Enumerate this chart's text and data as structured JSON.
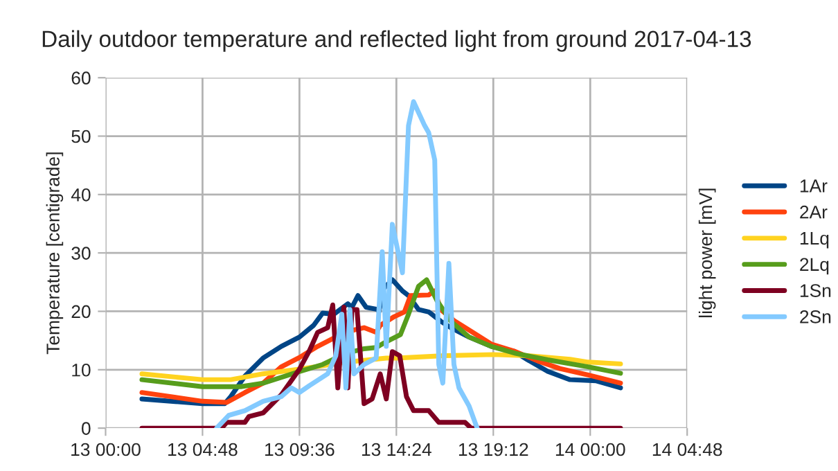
{
  "chart_data": {
    "type": "line",
    "title": "Daily outdoor temperature and reflected light from ground 2017-04-13",
    "ylabel": "Temperature [centigrade]",
    "y2label": "light power [mV]",
    "xlim": [
      "2017-04-13T00:00",
      "2017-04-14T04:48"
    ],
    "xticks": [
      {
        "value": "2017-04-13T00:00",
        "label": "13 00:00"
      },
      {
        "value": "2017-04-13T04:48",
        "label": "13 04:48"
      },
      {
        "value": "2017-04-13T09:36",
        "label": "13 09:36"
      },
      {
        "value": "2017-04-13T14:24",
        "label": "13 14:24"
      },
      {
        "value": "2017-04-13T19:12",
        "label": "13 19:12"
      },
      {
        "value": "2017-04-14T00:00",
        "label": "14 00:00"
      },
      {
        "value": "2017-04-14T04:48",
        "label": "14 04:48"
      }
    ],
    "ylim": [
      0,
      60
    ],
    "yticks": [
      0,
      10,
      20,
      30,
      40,
      50,
      60
    ],
    "grid": true,
    "legend": "right",
    "series": [
      {
        "name": "1Ar",
        "color": "#004586",
        "x": [
          "2017-04-13T01:48",
          "2017-04-13T04:48",
          "2017-04-13T05:54",
          "2017-04-13T06:12",
          "2017-04-13T06:54",
          "2017-04-13T07:48",
          "2017-04-13T08:42",
          "2017-04-13T09:36",
          "2017-04-13T10:18",
          "2017-04-13T10:45",
          "2017-04-13T11:18",
          "2017-04-13T12:00",
          "2017-04-13T12:12",
          "2017-04-13T12:30",
          "2017-04-13T12:54",
          "2017-04-13T13:30",
          "2017-04-13T13:32",
          "2017-04-13T13:46",
          "2017-04-13T14:12",
          "2017-04-13T14:42",
          "2017-04-13T15:00",
          "2017-04-13T15:30",
          "2017-04-13T16:00",
          "2017-04-13T16:36",
          "2017-04-13T17:06",
          "2017-04-13T18:00",
          "2017-04-13T19:06",
          "2017-04-13T20:12",
          "2017-04-13T20:54",
          "2017-04-13T21:54",
          "2017-04-13T23:00",
          "2017-04-14T00:18",
          "2017-04-14T01:30"
        ],
        "values": [
          5.0,
          4.2,
          4.2,
          5.4,
          8.9,
          12,
          14,
          15.6,
          17.6,
          19.7,
          19.5,
          21.3,
          20.7,
          22.7,
          20.7,
          20.3,
          19.9,
          23.9,
          25.4,
          23.5,
          22.7,
          20.3,
          19.9,
          18.3,
          17.2,
          15.6,
          14.0,
          13.2,
          11.7,
          9.7,
          8.3,
          8.1,
          6.9
        ]
      },
      {
        "name": "2Ar",
        "color": "#ff420e",
        "x": [
          "2017-04-13T01:48",
          "2017-04-13T04:48",
          "2017-04-13T06:00",
          "2017-04-13T06:54",
          "2017-04-13T07:48",
          "2017-04-13T08:42",
          "2017-04-13T09:36",
          "2017-04-13T10:30",
          "2017-04-13T11:24",
          "2017-04-13T12:18",
          "2017-04-13T12:48",
          "2017-04-13T13:24",
          "2017-04-13T13:36",
          "2017-04-13T14:18",
          "2017-04-13T14:48",
          "2017-04-13T15:06",
          "2017-04-13T16:00",
          "2017-04-13T16:18",
          "2017-04-13T16:36",
          "2017-04-13T17:18",
          "2017-04-13T18:00",
          "2017-04-13T19:06",
          "2017-04-13T20:18",
          "2017-04-13T21:24",
          "2017-04-13T22:30",
          "2017-04-13T23:54",
          "2017-04-14T01:30"
        ],
        "values": [
          6.1,
          4.6,
          4.4,
          6.1,
          7.7,
          10.5,
          12.1,
          14,
          15.6,
          16.8,
          17.2,
          16.4,
          17.6,
          19.1,
          19.9,
          22.7,
          22.8,
          23.5,
          20.3,
          18.3,
          16.8,
          14.4,
          13.1,
          11.5,
          10.2,
          9.1,
          7.7
        ]
      },
      {
        "name": "1Lq",
        "color": "#ffd320",
        "x": [
          "2017-04-13T01:48",
          "2017-04-13T04:48",
          "2017-04-13T06:12",
          "2017-04-13T07:48",
          "2017-04-13T09:36",
          "2017-04-13T11:54",
          "2017-04-13T13:54",
          "2017-04-13T14:24",
          "2017-04-13T16:48",
          "2017-04-13T19:12",
          "2017-04-13T20:54",
          "2017-04-13T23:00",
          "2017-04-13T23:54",
          "2017-04-14T01:30"
        ],
        "values": [
          9.3,
          8.3,
          8.3,
          9.3,
          10.1,
          11.3,
          12.0,
          12.0,
          12.4,
          12.6,
          12.4,
          11.8,
          11.3,
          11.0
        ]
      },
      {
        "name": "2Lq",
        "color": "#579d1c",
        "x": [
          "2017-04-13T01:48",
          "2017-04-13T04:48",
          "2017-04-13T06:42",
          "2017-04-13T07:48",
          "2017-04-13T09:36",
          "2017-04-13T10:45",
          "2017-04-13T11:54",
          "2017-04-13T12:48",
          "2017-04-13T13:24",
          "2017-04-13T13:54",
          "2017-04-13T14:36",
          "2017-04-13T15:00",
          "2017-04-13T15:30",
          "2017-04-13T15:54",
          "2017-04-13T16:24",
          "2017-04-13T17:06",
          "2017-04-13T18:00",
          "2017-04-13T19:06",
          "2017-04-13T20:18",
          "2017-04-13T21:54",
          "2017-04-13T23:54",
          "2017-04-14T01:30"
        ],
        "values": [
          8.3,
          7.1,
          7.1,
          7.7,
          9.7,
          10.9,
          12.8,
          13.6,
          13.8,
          14.8,
          16.0,
          19.5,
          24.3,
          25.4,
          21.9,
          18.3,
          15.6,
          14.0,
          12.8,
          11.7,
          10.5,
          9.4
        ]
      },
      {
        "name": "1Sn",
        "color": "#7e0021",
        "x": [
          "2017-04-13T01:48",
          "2017-04-13T05:45",
          "2017-04-13T06:00",
          "2017-04-13T06:54",
          "2017-04-13T07:06",
          "2017-04-13T07:48",
          "2017-04-13T08:42",
          "2017-04-13T09:36",
          "2017-04-13T10:06",
          "2017-04-13T10:30",
          "2017-04-13T11:00",
          "2017-04-13T11:15",
          "2017-04-13T11:30",
          "2017-04-13T11:48",
          "2017-04-13T12:00",
          "2017-04-13T12:12",
          "2017-04-13T12:27",
          "2017-04-13T12:48",
          "2017-04-13T13:12",
          "2017-04-13T13:36",
          "2017-04-13T13:54",
          "2017-04-13T14:12",
          "2017-04-13T14:34",
          "2017-04-13T14:54",
          "2017-04-13T15:15",
          "2017-04-13T16:00",
          "2017-04-13T16:30",
          "2017-04-13T17:48",
          "2017-04-13T18:06",
          "2017-04-14T01:30"
        ],
        "values": [
          0,
          0,
          1,
          1,
          2,
          2.6,
          5.7,
          10.1,
          13.3,
          16.4,
          17.2,
          21.1,
          6.9,
          20.7,
          6.9,
          20.3,
          20.3,
          4.2,
          5.0,
          9.3,
          5.0,
          13.1,
          12.4,
          5.4,
          3.0,
          3.0,
          1.0,
          1.0,
          0,
          0
        ]
      },
      {
        "name": "2Sn",
        "color": "#83caff",
        "x": [
          "2017-04-13T05:30",
          "2017-04-13T06:06",
          "2017-04-13T06:54",
          "2017-04-13T07:48",
          "2017-04-13T08:42",
          "2017-04-13T09:12",
          "2017-04-13T09:36",
          "2017-04-13T10:06",
          "2017-04-13T11:00",
          "2017-04-13T11:24",
          "2017-04-13T11:42",
          "2017-04-13T11:54",
          "2017-04-13T12:06",
          "2017-04-13T12:18",
          "2017-04-13T12:48",
          "2017-04-13T13:24",
          "2017-04-13T13:42",
          "2017-04-13T13:54",
          "2017-04-13T14:12",
          "2017-04-13T14:42",
          "2017-04-13T15:00",
          "2017-04-13T15:15",
          "2017-04-13T15:48",
          "2017-04-13T16:00",
          "2017-04-13T16:18",
          "2017-04-13T16:30",
          "2017-04-13T16:42",
          "2017-04-13T17:00",
          "2017-04-13T17:15",
          "2017-04-13T17:30",
          "2017-04-13T18:00",
          "2017-04-13T18:24"
        ],
        "values": [
          0,
          2.2,
          3.0,
          4.6,
          5.4,
          6.9,
          6.1,
          7.3,
          9.3,
          12.4,
          19.5,
          6.9,
          20.3,
          9.3,
          10.9,
          12.0,
          30.2,
          14.0,
          34.9,
          26.6,
          51.8,
          55.9,
          51.8,
          50.6,
          45.9,
          10.9,
          7.7,
          28.2,
          10.9,
          6.9,
          3.8,
          0
        ]
      }
    ]
  }
}
